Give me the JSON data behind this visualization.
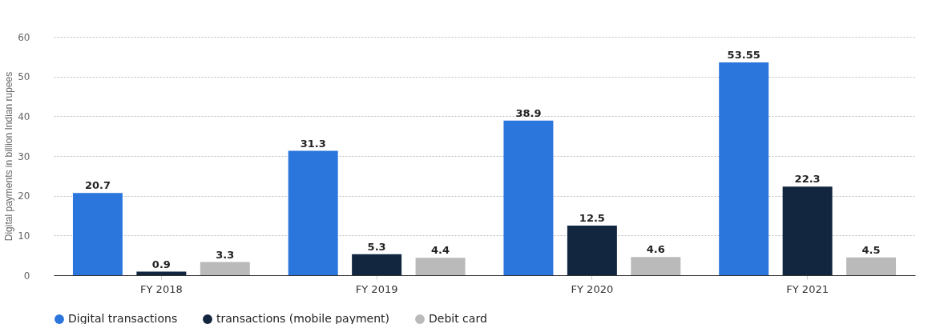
{
  "chart_data": {
    "type": "bar",
    "ylabel": "Digital payments in billion Indian rupees",
    "categories": [
      "FY 2018",
      "FY 2019",
      "FY 2020",
      "FY 2021"
    ],
    "series": [
      {
        "name": "Digital transactions",
        "color": "#2a76dd",
        "values": [
          20.7,
          31.3,
          38.9,
          53.55
        ]
      },
      {
        "name": "transactions (mobile payment)",
        "color": "#12263f",
        "values": [
          0.9,
          5.3,
          12.5,
          22.3
        ]
      },
      {
        "name": "Debit card",
        "color": "#bababa",
        "values": [
          3.3,
          4.4,
          4.6,
          4.5
        ]
      }
    ],
    "ylim": [
      0,
      60
    ],
    "yticks": [
      0,
      10,
      20,
      30,
      40,
      50,
      60
    ],
    "grid": "y",
    "legend": "bottom",
    "data_labels": true
  }
}
